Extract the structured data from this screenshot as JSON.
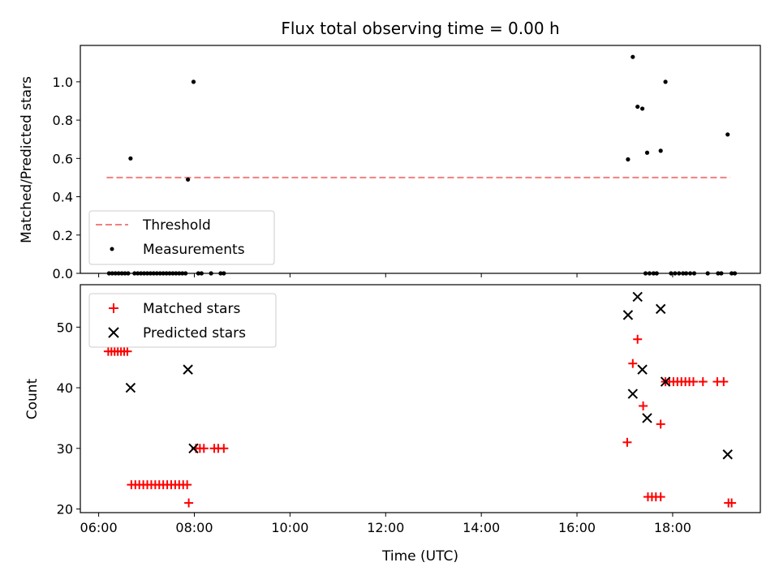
{
  "chart_data": [
    {
      "type": "scatter",
      "title": "Flux total observing time = 0.00 h",
      "xlabel": "",
      "ylabel": "Matched/Predicted stars",
      "xlim": [
        "05:37",
        "19:50"
      ],
      "ylim": [
        0,
        1.19
      ],
      "yticks": [
        0.0,
        0.2,
        0.4,
        0.6,
        0.8,
        1.0
      ],
      "ytick_labels": [
        "0.0",
        "0.2",
        "0.4",
        "0.6",
        "0.8",
        "1.0"
      ],
      "grid": false,
      "legend_position": "lower-left",
      "threshold": {
        "name": "Threshold",
        "value": 0.5,
        "x_start": "06:10",
        "x_end": "19:12",
        "color": "#f08080",
        "style": "dashed"
      },
      "series": [
        {
          "name": "Measurements",
          "marker": "dot",
          "color": "#000000",
          "points": [
            [
              "06:40",
              0.6
            ],
            [
              "07:52",
              0.49
            ],
            [
              "07:59",
              1.0
            ],
            [
              "17:04",
              0.595
            ],
            [
              "17:10",
              1.13
            ],
            [
              "17:16",
              0.87
            ],
            [
              "17:22",
              0.86
            ],
            [
              "17:28",
              0.63
            ],
            [
              "17:45",
              0.64
            ],
            [
              "17:51",
              1.0
            ],
            [
              "19:09",
              0.725
            ],
            [
              "06:13",
              0.0
            ],
            [
              "06:17",
              0.0
            ],
            [
              "06:21",
              0.0
            ],
            [
              "06:25",
              0.0
            ],
            [
              "06:29",
              0.0
            ],
            [
              "06:33",
              0.0
            ],
            [
              "06:37",
              0.0
            ],
            [
              "06:45",
              0.0
            ],
            [
              "06:49",
              0.0
            ],
            [
              "06:53",
              0.0
            ],
            [
              "06:57",
              0.0
            ],
            [
              "07:01",
              0.0
            ],
            [
              "07:05",
              0.0
            ],
            [
              "07:09",
              0.0
            ],
            [
              "07:13",
              0.0
            ],
            [
              "07:17",
              0.0
            ],
            [
              "07:21",
              0.0
            ],
            [
              "07:25",
              0.0
            ],
            [
              "07:29",
              0.0
            ],
            [
              "07:33",
              0.0
            ],
            [
              "07:37",
              0.0
            ],
            [
              "07:41",
              0.0
            ],
            [
              "07:45",
              0.0
            ],
            [
              "07:49",
              0.0
            ],
            [
              "08:05",
              0.0
            ],
            [
              "08:09",
              0.0
            ],
            [
              "08:21",
              0.0
            ],
            [
              "08:33",
              0.0
            ],
            [
              "08:37",
              0.0
            ],
            [
              "17:26",
              0.0
            ],
            [
              "17:31",
              0.0
            ],
            [
              "17:36",
              0.0
            ],
            [
              "17:40",
              0.0
            ],
            [
              "17:58",
              0.0
            ],
            [
              "18:03",
              0.0
            ],
            [
              "18:08",
              0.0
            ],
            [
              "18:13",
              0.0
            ],
            [
              "18:17",
              0.0
            ],
            [
              "18:22",
              0.0
            ],
            [
              "18:27",
              0.0
            ],
            [
              "18:44",
              0.0
            ],
            [
              "18:57",
              0.0
            ],
            [
              "19:01",
              0.0
            ],
            [
              "19:14",
              0.0
            ],
            [
              "19:18",
              0.0
            ]
          ]
        }
      ]
    },
    {
      "type": "scatter",
      "title": "",
      "xlabel": "Time (UTC)",
      "ylabel": "Count",
      "xlim": [
        "05:37",
        "19:50"
      ],
      "ylim": [
        19.4,
        57.0
      ],
      "xticks": [
        "06:00",
        "08:00",
        "10:00",
        "12:00",
        "14:00",
        "16:00",
        "18:00"
      ],
      "yticks": [
        20,
        30,
        40,
        50
      ],
      "ytick_labels": [
        "20",
        "30",
        "40",
        "50"
      ],
      "grid": false,
      "legend_position": "upper-left",
      "series": [
        {
          "name": "Matched stars",
          "marker": "plus",
          "color": "#ff0000",
          "points": [
            [
              "06:12",
              46
            ],
            [
              "06:16",
              46
            ],
            [
              "06:20",
              46
            ],
            [
              "06:24",
              46
            ],
            [
              "06:28",
              46
            ],
            [
              "06:32",
              46
            ],
            [
              "06:36",
              46
            ],
            [
              "06:41",
              24
            ],
            [
              "06:46",
              24
            ],
            [
              "06:51",
              24
            ],
            [
              "06:56",
              24
            ],
            [
              "07:01",
              24
            ],
            [
              "07:06",
              24
            ],
            [
              "07:11",
              24
            ],
            [
              "07:16",
              24
            ],
            [
              "07:21",
              24
            ],
            [
              "07:26",
              24
            ],
            [
              "07:31",
              24
            ],
            [
              "07:36",
              24
            ],
            [
              "07:41",
              24
            ],
            [
              "07:46",
              24
            ],
            [
              "07:51",
              24
            ],
            [
              "07:53",
              21
            ],
            [
              "08:02",
              30
            ],
            [
              "08:07",
              30
            ],
            [
              "08:12",
              30
            ],
            [
              "08:25",
              30
            ],
            [
              "08:30",
              30
            ],
            [
              "08:37",
              30
            ],
            [
              "17:03",
              31
            ],
            [
              "17:10",
              44
            ],
            [
              "17:16",
              48
            ],
            [
              "17:23",
              37
            ],
            [
              "17:29",
              22
            ],
            [
              "17:34",
              22
            ],
            [
              "17:39",
              22
            ],
            [
              "17:45",
              22
            ],
            [
              "17:45",
              34
            ],
            [
              "17:51",
              41
            ],
            [
              "17:56",
              41
            ],
            [
              "18:01",
              41
            ],
            [
              "18:06",
              41
            ],
            [
              "18:11",
              41
            ],
            [
              "18:16",
              41
            ],
            [
              "18:21",
              41
            ],
            [
              "18:26",
              41
            ],
            [
              "18:38",
              41
            ],
            [
              "18:56",
              41
            ],
            [
              "19:04",
              41
            ],
            [
              "19:10",
              21
            ],
            [
              "19:14",
              21
            ]
          ]
        },
        {
          "name": "Predicted stars",
          "marker": "x",
          "color": "#000000",
          "points": [
            [
              "06:40",
              40
            ],
            [
              "07:52",
              43
            ],
            [
              "07:59",
              30
            ],
            [
              "17:04",
              52
            ],
            [
              "17:10",
              39
            ],
            [
              "17:16",
              55
            ],
            [
              "17:22",
              43
            ],
            [
              "17:28",
              35
            ],
            [
              "17:45",
              53
            ],
            [
              "17:51",
              41
            ],
            [
              "19:09",
              29
            ]
          ]
        }
      ]
    }
  ]
}
